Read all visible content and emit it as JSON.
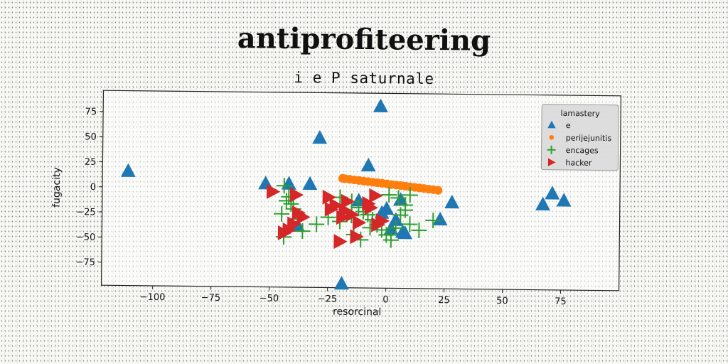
{
  "chart_data": {
    "type": "scatter",
    "title": "antiprofiteering",
    "subtitle": "i e P saturnale",
    "xlabel": "resorcinal",
    "ylabel": "fugacity",
    "xlim": [
      -122,
      100
    ],
    "ylim": [
      -98,
      96
    ],
    "xticks": [
      -100,
      -75,
      -50,
      -25,
      0,
      25,
      50,
      75
    ],
    "yticks": [
      75,
      50,
      25,
      0,
      -25,
      -50,
      -75
    ],
    "xtick_labels": [
      "−100",
      "−75",
      "−50",
      "−25",
      "0",
      "25",
      "50",
      "75"
    ],
    "ytick_labels": [
      "75",
      "50",
      "25",
      "0",
      "−25",
      "−50",
      "−75"
    ],
    "grid": false,
    "legend": {
      "title": "lamastery",
      "position": "top-right"
    },
    "colors": {
      "e": "#1f77b4",
      "perijejunitis": "#ff7f0e",
      "encages": "#2ca02c",
      "hacker": "#d62728"
    },
    "series": [
      {
        "name": "e",
        "marker": "triangle-up",
        "x": [
          -111,
          -3,
          -29,
          -8,
          -52,
          -42,
          -33,
          -12,
          -19,
          6,
          8,
          23,
          28,
          67,
          71,
          76,
          0,
          4,
          -38,
          2,
          7,
          -2
        ],
        "y": [
          16,
          83,
          51,
          24,
          5,
          5,
          5,
          -11,
          -94,
          -10,
          -43,
          -29,
          -12,
          -13,
          -2,
          -9,
          -19,
          -30,
          -37,
          -39,
          -42,
          -23
        ]
      },
      {
        "name": "perijejunitis",
        "marker": "circle",
        "x": [
          -19,
          -18,
          -16,
          -14,
          -12,
          -10,
          -8,
          -6,
          -4,
          -2,
          0,
          2,
          4,
          6,
          8,
          10,
          12,
          14,
          16,
          18,
          20,
          22
        ],
        "y": [
          11,
          10.6,
          10.1,
          9.5,
          9.0,
          8.5,
          8.0,
          7.4,
          6.9,
          6.4,
          5.9,
          5.3,
          4.8,
          4.3,
          3.8,
          3.2,
          2.7,
          2.2,
          1.7,
          1.1,
          0.6,
          0
        ]
      },
      {
        "name": "encages",
        "marker": "plus",
        "x": [
          -44,
          -42,
          -40,
          -45,
          -38,
          -36,
          -44,
          -41,
          -30,
          -25,
          -20,
          -15,
          -12,
          -10,
          -8,
          -6,
          -4,
          -2,
          0,
          2,
          4,
          6,
          8,
          10,
          -14,
          -11,
          -7,
          5,
          8,
          10,
          14,
          20,
          -43,
          -20,
          -15,
          1
        ],
        "y": [
          3,
          -8,
          -20,
          -25,
          -30,
          -42,
          -48,
          -15,
          -35,
          -28,
          -8,
          -12,
          -18,
          -22,
          -25,
          -30,
          -35,
          -40,
          -45,
          -50,
          -38,
          -25,
          -15,
          -5,
          -45,
          -50,
          -38,
          -8,
          -20,
          -34,
          -40,
          -30,
          -12,
          -32,
          -26,
          -5
        ]
      },
      {
        "name": "hacker",
        "marker": "triangle-right",
        "x": [
          -49,
          -39,
          -36,
          -40,
          -44,
          -25,
          -22,
          -18,
          -15,
          -12,
          -8,
          -5,
          -2,
          -20,
          -24,
          -13,
          -4,
          -19,
          -7,
          -17,
          -42,
          -38
        ],
        "y": [
          -3,
          -6,
          -28,
          -35,
          -44,
          -8,
          -16,
          -21,
          -25,
          -33,
          -14,
          -6,
          -31,
          -52,
          -20,
          -47,
          -35,
          -28,
          -18,
          -12,
          -41,
          -24
        ]
      }
    ]
  }
}
